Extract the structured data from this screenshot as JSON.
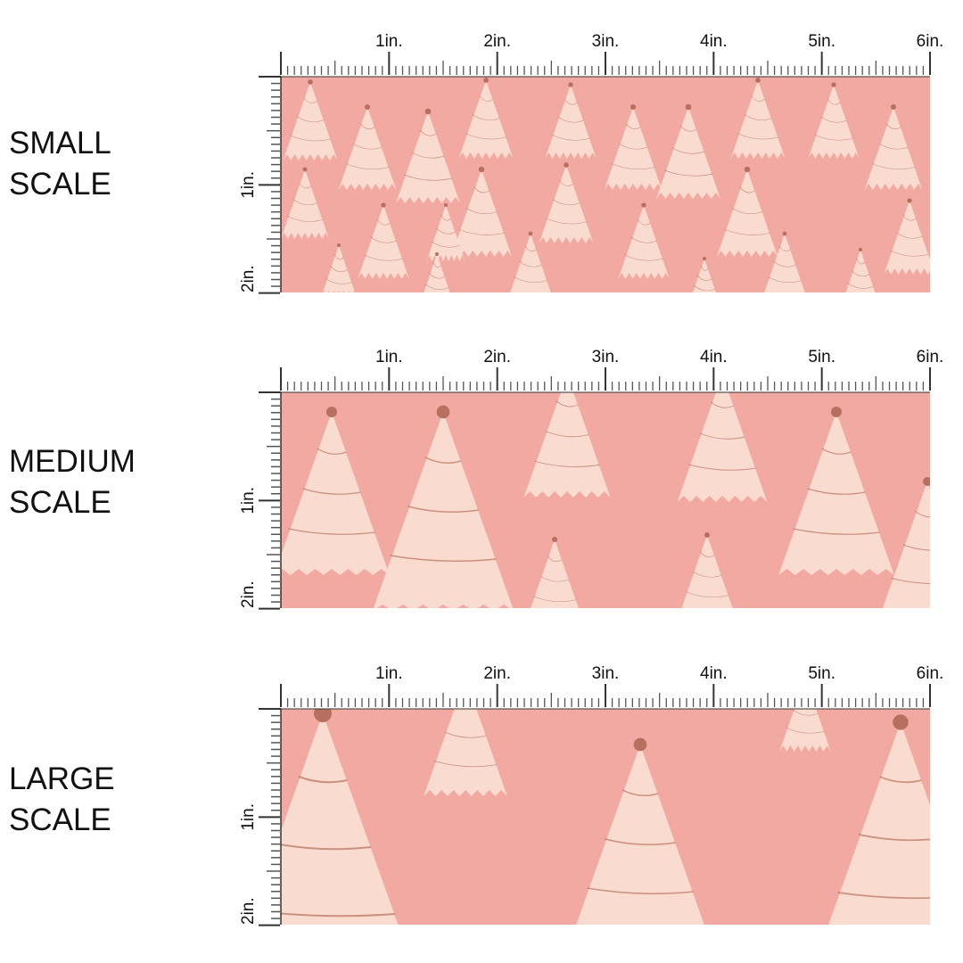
{
  "colors": {
    "background": "#f2a9a1",
    "tree": "#f9dccf",
    "ornament": "#b7705f",
    "ruler": "#333333"
  },
  "ruler": {
    "top_labels": [
      "1in.",
      "2in.",
      "3in.",
      "4in.",
      "5in.",
      "6in."
    ],
    "side_labels": [
      "1in.",
      "2in."
    ]
  },
  "panels": [
    {
      "label": "SMALL\nSCALE",
      "scale": "small"
    },
    {
      "label": "MEDIUM\nSCALE",
      "scale": "medium"
    },
    {
      "label": "LARGE\nSCALE",
      "scale": "large"
    }
  ]
}
